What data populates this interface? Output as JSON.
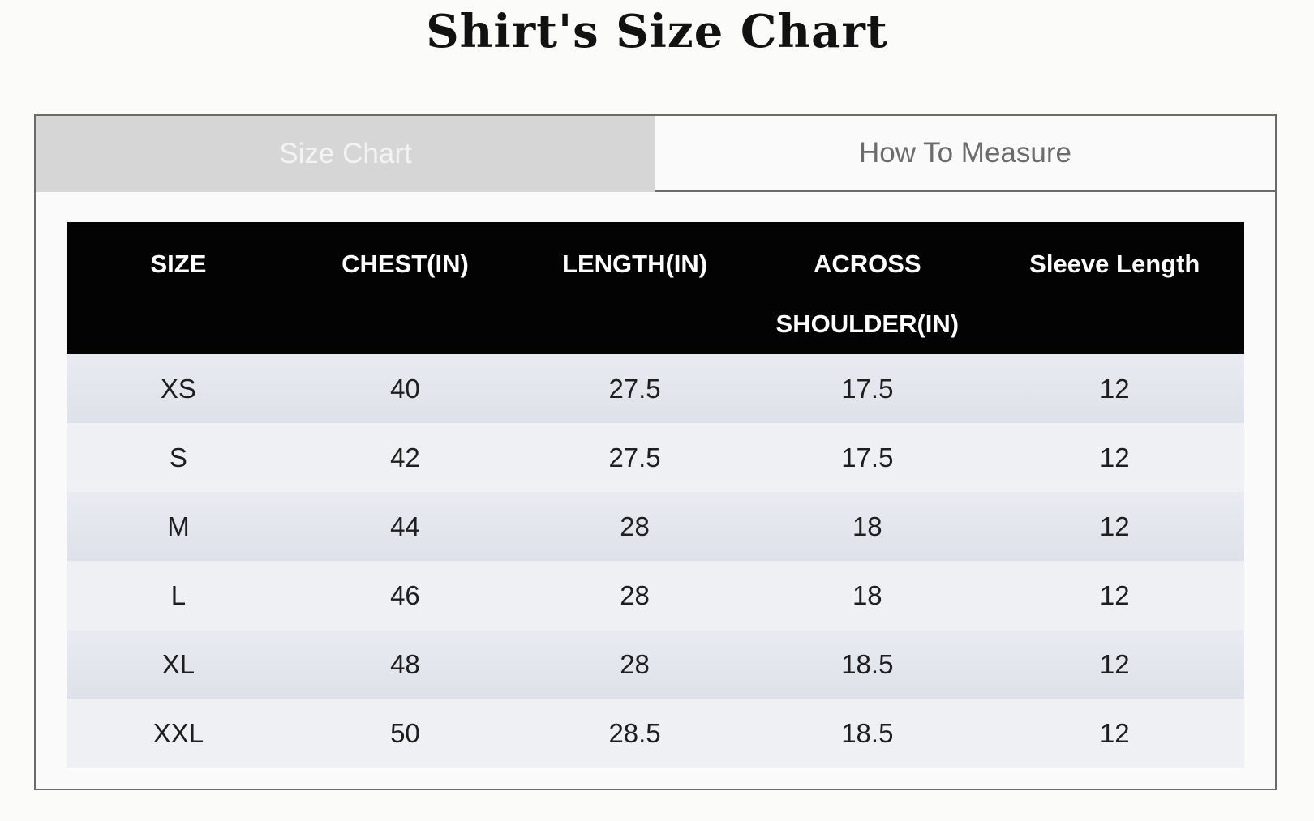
{
  "page": {
    "title": "Shirt's Size Chart"
  },
  "tabs": {
    "size_chart": {
      "label": "Size Chart",
      "active": true
    },
    "how_to_measure": {
      "label": "How To Measure",
      "active": false
    }
  },
  "table": {
    "headers": [
      "SIZE",
      "CHEST(IN)",
      "LENGTH(IN)",
      "ACROSS SHOULDER(IN)",
      "Sleeve Length"
    ],
    "rows": [
      [
        "XS",
        "40",
        "27.5",
        "17.5",
        "12"
      ],
      [
        "S",
        "42",
        "27.5",
        "17.5",
        "12"
      ],
      [
        "M",
        "44",
        "28",
        "18",
        "12"
      ],
      [
        "L",
        "46",
        "28",
        "18",
        "12"
      ],
      [
        "XL",
        "48",
        "28",
        "18.5",
        "12"
      ],
      [
        "XXL",
        "50",
        "28.5",
        "18.5",
        "12"
      ]
    ]
  },
  "colors": {
    "page_background": "#fbfbfa",
    "panel_border": "#6b6b6b",
    "active_tab_background": "#d6d6d6",
    "active_tab_text": "#f4f2f2",
    "inactive_tab_text": "#6c6c6c",
    "header_background": "#030303",
    "header_text": "#ffffff",
    "row_odd_background": "#e2e5ec",
    "row_even_background": "#eff0f4",
    "cell_text": "#1e1e1e"
  }
}
